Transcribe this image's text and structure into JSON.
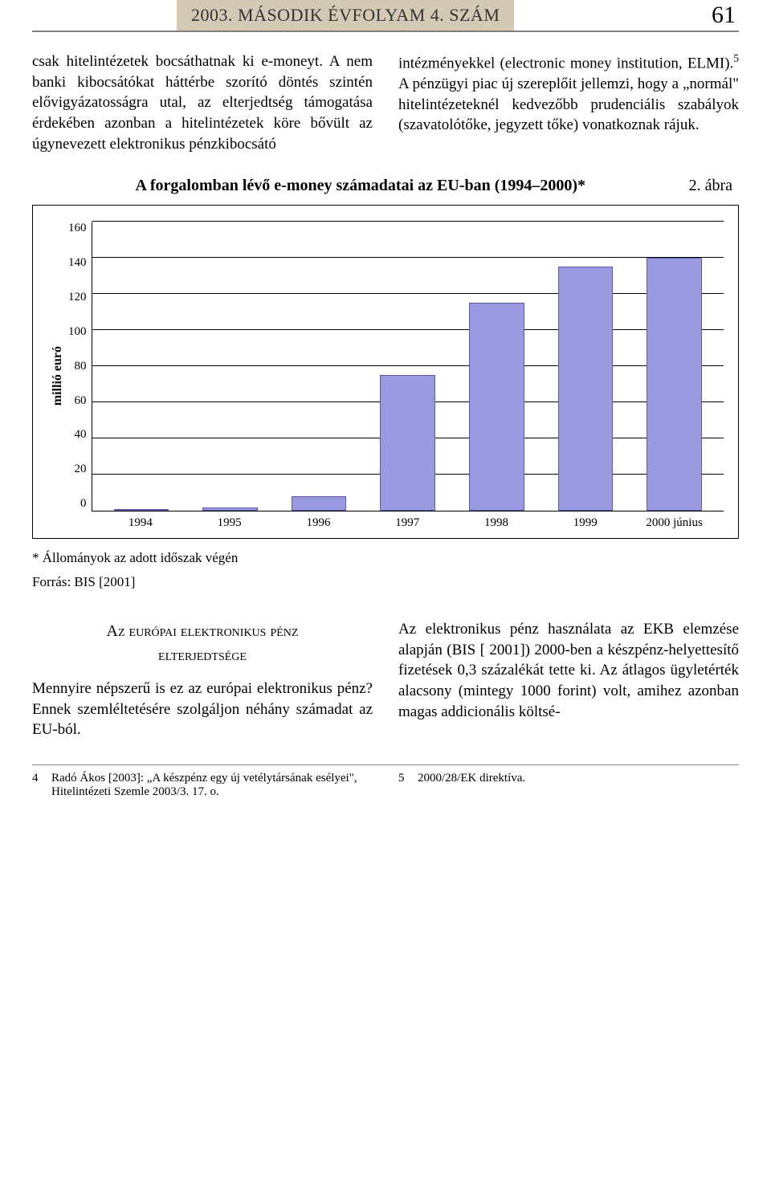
{
  "header": {
    "journal": "2003. MÁSODIK ÉVFOLYAM 4. SZÁM",
    "page_number": "61"
  },
  "body": {
    "left": "csak hitelintézetek bocsáthatnak ki e-moneyt. A nem banki kibocsátókat háttérbe szorító döntés szintén elővigyázatosságra utal, az elterjedtség támogatása érdekében azonban a hitelintézetek köre bővült az úgynevezett elektronikus pénzkibocsátó",
    "right_a": "intézményekkel (electronic money institution, ELMI).",
    "right_sup": "5",
    "right_b": " A pénzügyi piac új szereplőit jellemzi, hogy a „normál\" hitelintézeteknél kedvezőbb prudenciális szabályok (szavatolótőke, jegyzett tőke) vonatkoznak rájuk."
  },
  "figure": {
    "number": "2. ábra",
    "caption": "A forgalomban lévő e-money számadatai az EU-ban (1994–2000)*",
    "note": "* Állományok az adott időszak végén",
    "source": "Forrás: BIS [2001]"
  },
  "chart": {
    "type": "bar",
    "ylabel": "millió euró",
    "ylim_max": 160,
    "ytick_step": 20,
    "yticks": [
      "160",
      "140",
      "120",
      "100",
      "80",
      "60",
      "40",
      "20",
      "0"
    ],
    "categories": [
      "1994",
      "1995",
      "1996",
      "1997",
      "1998",
      "1999",
      "2000 június"
    ],
    "values": [
      0,
      2,
      8,
      75,
      115,
      135,
      140
    ],
    "bar_color": "#9a9ae0",
    "bar_border": "#5a5aa8",
    "grid_color": "#000000",
    "background_color": "#ffffff",
    "bar_width": 0.62
  },
  "section": {
    "heading_line1": "Az európai elektronikus pénz",
    "heading_line2": "elterjedtsége",
    "left_text": "Mennyire népszerű is ez az európai elektronikus pénz? Ennek szemléltetésére szolgáljon néhány számadat az EU-ból.",
    "right_text": "Az elektronikus pénz használata az EKB elemzése alapján (BIS [ 2001]) 2000-ben a készpénz-helyettesítő fizetések 0,3 százalékát tette ki. Az átlagos ügyletérték alacsony (mintegy 1000 forint) volt, amihez azonban magas addicionális költsé-"
  },
  "footnotes": {
    "left_num": "4",
    "left_text": "Radó Ákos [2003]: „A készpénz egy új vetélytársának esélyei\", Hitelintézeti Szemle 2003/3. 17. o.",
    "right_num": "5",
    "right_text": "2000/28/EK direktíva."
  }
}
